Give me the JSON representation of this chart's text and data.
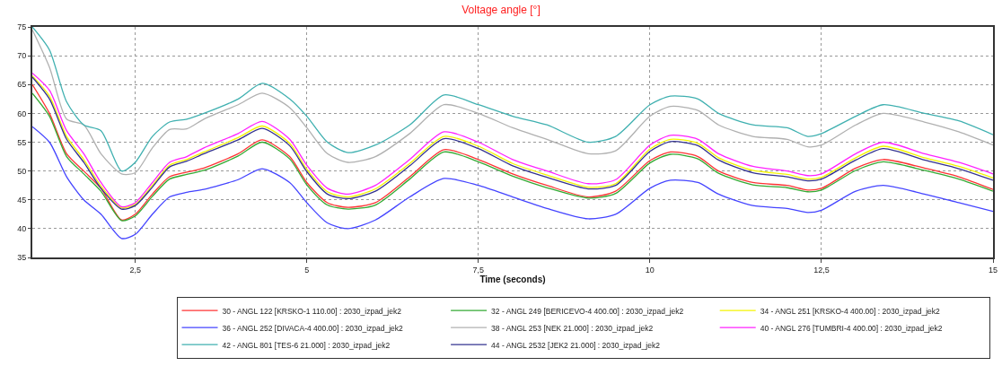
{
  "chart_data": {
    "type": "line",
    "title": "Voltage angle [°]",
    "xlabel": "Time (seconds)",
    "x": [
      1,
      1.25,
      1.5,
      1.75,
      2,
      2.3,
      2.5,
      2.75,
      3,
      3.25,
      3.5,
      4,
      4.35,
      4.75,
      5,
      5.3,
      5.6,
      6,
      6.5,
      7,
      7.5,
      8,
      8.5,
      9.1,
      9.5,
      10,
      10.3,
      10.7,
      11,
      11.5,
      12,
      12.3,
      12.5,
      13,
      13.4,
      14,
      14.5,
      15
    ],
    "xlim": [
      1,
      15
    ],
    "xticks": [
      {
        "value": 2.5,
        "label": "2,5"
      },
      5,
      {
        "value": 7.5,
        "label": "7,5"
      },
      10,
      {
        "value": 12.5,
        "label": "12,5"
      },
      15
    ],
    "ylim": [
      35,
      75
    ],
    "yticks": [
      35,
      40,
      45,
      50,
      55,
      60,
      65,
      70,
      75
    ],
    "grid": true,
    "legend": "bottom",
    "series": [
      {
        "name": "30 - ANGL 122 [KRSKO-1 110.00] : 2030_izpad_jek2",
        "color": "#ff3333",
        "values": [
          65,
          60,
          53,
          50,
          47,
          41.5,
          42.5,
          46,
          49,
          49.8,
          50.5,
          53,
          55.4,
          52.5,
          48,
          44.5,
          43.7,
          44.5,
          49,
          53.7,
          52,
          49.5,
          47.5,
          45.5,
          46.5,
          51.8,
          53.3,
          52.5,
          50,
          48,
          47.5,
          46.7,
          47,
          50.5,
          52,
          50.5,
          49,
          46.8
        ]
      },
      {
        "name": "32 - ANGL 249 [BERICEVO-4 400.00] : 2030_izpad_jek2",
        "color": "#33aa33",
        "values": [
          63.5,
          59.5,
          52.5,
          49.5,
          46.5,
          41.4,
          42.2,
          45.6,
          48.6,
          49.4,
          50.1,
          52.6,
          55,
          52.1,
          47.6,
          44.1,
          43.4,
          44.1,
          48.6,
          53.3,
          51.6,
          49.1,
          47.1,
          45.3,
          46.1,
          51.4,
          52.9,
          52.1,
          49.6,
          47.6,
          47.1,
          46.4,
          46.7,
          50.1,
          51.6,
          50.1,
          48.6,
          46.5
        ]
      },
      {
        "name": "34 - ANGL 251 [KRSKO-4 400.00] : 2030_izpad_jek2",
        "color": "#f5f500",
        "values": [
          66.5,
          63,
          56,
          52,
          47.4,
          43.6,
          44.2,
          47.5,
          51,
          52,
          53.3,
          55.8,
          57.8,
          54.8,
          50.3,
          46.4,
          45.5,
          46.9,
          51.3,
          56,
          54.3,
          51.3,
          49.3,
          47.2,
          47.8,
          53.8,
          55.5,
          54.8,
          52.3,
          50.1,
          49.4,
          48.6,
          48.9,
          52.3,
          54.3,
          52.3,
          50.8,
          48.8
        ]
      },
      {
        "name": "36 - ANGL 252 [DIVACA-4 400.00] : 2030_izpad_jek2",
        "color": "#4444ff",
        "values": [
          57.7,
          55,
          49,
          45,
          42.5,
          38.3,
          39,
          42.5,
          45.5,
          46.3,
          46.8,
          48.5,
          50.4,
          48,
          44.5,
          41,
          40,
          41.5,
          45.5,
          48.7,
          47.5,
          45.5,
          43.5,
          41.7,
          42.5,
          47,
          48.4,
          48,
          46,
          44,
          43.5,
          42.8,
          43.2,
          46.5,
          47.5,
          46,
          44.5,
          43
        ]
      },
      {
        "name": "38 - ANGL 253 [NEK 21.000] : 2030_izpad_jek2",
        "color": "#b0b0b0",
        "values": [
          74.5,
          68,
          59,
          58,
          53,
          49.5,
          49.7,
          54,
          57.2,
          57.3,
          59,
          61.5,
          63.5,
          61,
          57.5,
          53,
          51.5,
          52.5,
          56.5,
          61.5,
          60,
          57.5,
          55.5,
          53,
          53.5,
          59.5,
          61.2,
          60.5,
          58,
          56,
          55.5,
          54.2,
          54.5,
          58,
          60,
          58.5,
          56.8,
          54.5
        ]
      },
      {
        "name": "40 - ANGL 276 [TUMBRI-4 400.00] : 2030_izpad_jek2",
        "color": "#ff22ff",
        "values": [
          67,
          64,
          57,
          53,
          48,
          43.8,
          44.5,
          48,
          51.5,
          52.5,
          54,
          56.5,
          58.6,
          55.5,
          51,
          47,
          46,
          47.5,
          52,
          56.8,
          55,
          52,
          50,
          47.8,
          48.5,
          54.5,
          56.2,
          55.5,
          53,
          50.8,
          50,
          49.2,
          49.5,
          53,
          55,
          53,
          51.5,
          49.5
        ]
      },
      {
        "name": "42 - ANGL 801 [TES-6 21.000] : 2030_izpad_jek2",
        "color": "#3fb0b0",
        "values": [
          75,
          71,
          62,
          58,
          57,
          50,
          51.5,
          56,
          58.5,
          59,
          60,
          62.5,
          65.2,
          62.5,
          59.5,
          55,
          53.2,
          54.5,
          58,
          63.2,
          61.5,
          59.5,
          58,
          55,
          56,
          61.5,
          63,
          62.5,
          60,
          58,
          57.5,
          56,
          56.5,
          59.5,
          61.5,
          60,
          58.7,
          56.3
        ]
      },
      {
        "name": "44 - ANGL 2532 [JEK2 21.000] : 2030_izpad_jek2",
        "color": "#33338f",
        "values": [
          66.3,
          62.5,
          55.5,
          51.5,
          47,
          43.4,
          44,
          47.2,
          50.7,
          51.7,
          53,
          55.4,
          57.4,
          54.4,
          49.9,
          46,
          45.2,
          46.5,
          50.9,
          55.6,
          53.9,
          50.9,
          48.9,
          46.9,
          47.5,
          53.4,
          55.1,
          54.4,
          51.9,
          49.7,
          49,
          48.3,
          48.6,
          51.9,
          53.9,
          51.9,
          50.4,
          48.4
        ]
      }
    ]
  }
}
